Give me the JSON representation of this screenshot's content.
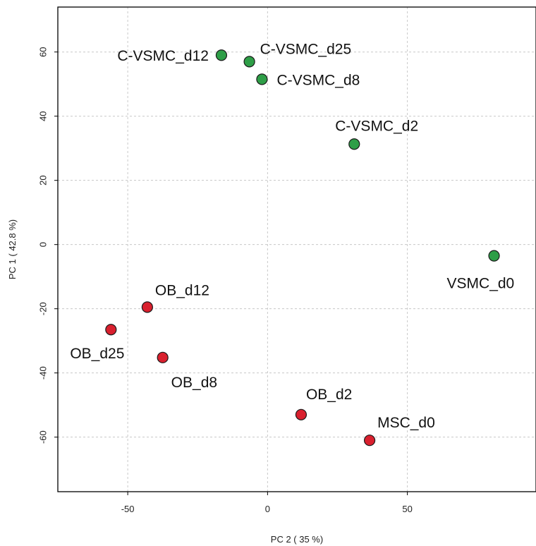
{
  "chart_data": {
    "type": "scatter",
    "title": "",
    "xlabel": "PC 2 ( 35 %)",
    "ylabel": "PC 1 ( 42.8 %)",
    "xlim": [
      -75,
      96
    ],
    "ylim": [
      -77,
      74
    ],
    "x_ticks": [
      -50,
      0,
      50
    ],
    "y_ticks": [
      -60,
      -40,
      -20,
      0,
      20,
      40,
      60
    ],
    "grid": true,
    "colors": {
      "green_group": "#2e9e47",
      "red_group": "#d9202e"
    },
    "points": [
      {
        "label": "C-VSMC_d12",
        "x": -16.5,
        "y": 59,
        "group": "green_group"
      },
      {
        "label": "C-VSMC_d25",
        "x": -6.5,
        "y": 57,
        "group": "green_group"
      },
      {
        "label": "C-VSMC_d8",
        "x": -2,
        "y": 51.5,
        "group": "green_group"
      },
      {
        "label": "C-VSMC_d2",
        "x": 31,
        "y": 31.3,
        "group": "green_group"
      },
      {
        "label": "VSMC_d0",
        "x": 81,
        "y": -3.5,
        "group": "green_group"
      },
      {
        "label": "OB_d12",
        "x": -43,
        "y": -19.5,
        "group": "red_group"
      },
      {
        "label": "OB_d25",
        "x": -56,
        "y": -26.5,
        "group": "red_group"
      },
      {
        "label": "OB_d8",
        "x": -37.5,
        "y": -35.2,
        "group": "red_group"
      },
      {
        "label": "OB_d2",
        "x": 12,
        "y": -53,
        "group": "red_group"
      },
      {
        "label": "MSC_d0",
        "x": 36.5,
        "y": -61,
        "group": "red_group"
      }
    ]
  }
}
